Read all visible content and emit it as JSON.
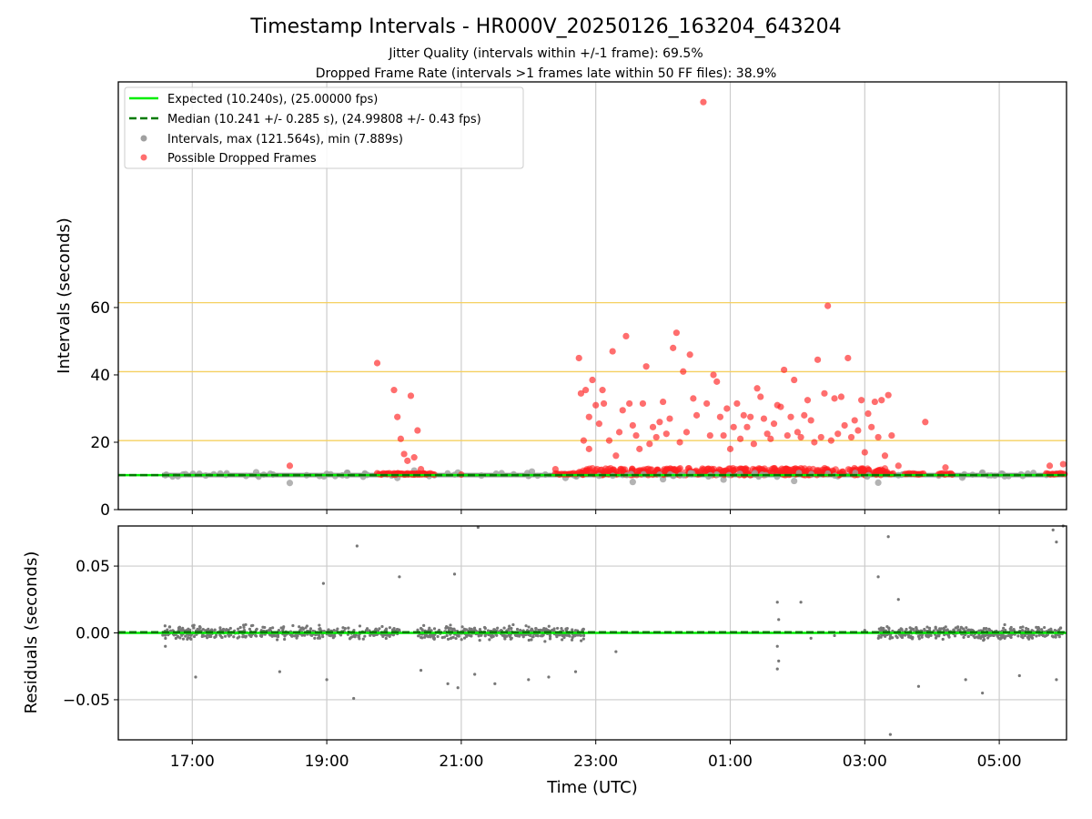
{
  "figure": {
    "title": "Timestamp Intervals - HR000V_20250126_163204_643204",
    "subtitle_1": "Jitter Quality (intervals within +/-1 frame): 69.5%",
    "subtitle_2": "Dropped Frame Rate (intervals >1 frames late within 50 FF files): 38.9%"
  },
  "colors": {
    "expected": "#00ee00",
    "median": "#007a00",
    "intervals": "#a0a0a0",
    "dropped": "#ff2020",
    "residuals": "#777777",
    "threshold": "#f5d060",
    "grid": "#cccccc"
  },
  "chart_data": [
    {
      "type": "scatter",
      "ylabel": "Intervals (seconds)",
      "xlim_hours": [
        15.9,
        30.0
      ],
      "ylim": [
        0,
        127
      ],
      "yticks": [
        0,
        20,
        40,
        60
      ],
      "yticklabels": [
        "0",
        "20",
        "40",
        "60"
      ],
      "xticks_hours": [
        17,
        19,
        21,
        23,
        25,
        27,
        29
      ],
      "grid": true,
      "legend_location": "upper left",
      "legend": [
        "Expected (10.240s), (25.00000 fps)",
        "Median (10.241 +/- 0.285 s), (24.99808 +/- 0.43 fps)",
        "Intervals, max (121.564s), min (7.889s)",
        "Possible Dropped Frames"
      ],
      "threshold_lines": [
        20.48,
        40.96,
        61.44
      ],
      "expected_interval": 10.24,
      "median_interval": 10.241,
      "series": [
        {
          "name": "Intervals, max (121.564s), min (7.889s)",
          "points": [
            [
              16.6,
              10.2
            ],
            [
              16.9,
              10.5
            ],
            [
              17.2,
              10.1
            ],
            [
              17.5,
              10.3
            ],
            [
              17.8,
              10.0
            ],
            [
              17.95,
              11.1
            ],
            [
              18.2,
              10.4
            ],
            [
              18.45,
              7.9
            ],
            [
              18.7,
              10.2
            ],
            [
              19.0,
              10.6
            ],
            [
              19.3,
              10.1
            ],
            [
              19.6,
              10.3
            ],
            [
              20.05,
              9.4
            ],
            [
              20.3,
              11.6
            ],
            [
              20.6,
              10.2
            ],
            [
              20.95,
              11.0
            ],
            [
              21.3,
              10.1
            ],
            [
              21.6,
              10.8
            ],
            [
              22.05,
              11.3
            ],
            [
              22.25,
              10.4
            ],
            [
              22.55,
              9.4
            ],
            [
              22.7,
              10.0
            ],
            [
              23.1,
              11.1
            ],
            [
              23.4,
              10.3
            ],
            [
              23.55,
              8.2
            ],
            [
              24.0,
              9.0
            ],
            [
              24.4,
              10.8
            ],
            [
              24.9,
              8.9
            ],
            [
              25.3,
              10.2
            ],
            [
              25.7,
              10.5
            ],
            [
              25.95,
              8.5
            ],
            [
              26.3,
              11.4
            ],
            [
              26.6,
              9.9
            ],
            [
              26.9,
              10.3
            ],
            [
              27.2,
              8.0
            ],
            [
              27.5,
              10.2
            ],
            [
              27.75,
              10.6
            ],
            [
              28.1,
              10.1
            ],
            [
              28.45,
              9.5
            ],
            [
              28.75,
              11.0
            ],
            [
              29.05,
              10.6
            ],
            [
              29.35,
              10.0
            ],
            [
              29.7,
              10.3
            ]
          ]
        },
        {
          "name": "Possible Dropped Frames",
          "points": [
            [
              18.45,
              13.0
            ],
            [
              19.75,
              43.5
            ],
            [
              19.82,
              10.5
            ],
            [
              20.0,
              35.5
            ],
            [
              20.05,
              27.5
            ],
            [
              20.1,
              21.0
            ],
            [
              20.15,
              16.5
            ],
            [
              20.2,
              14.5
            ],
            [
              20.25,
              33.8
            ],
            [
              20.3,
              15.5
            ],
            [
              20.35,
              23.5
            ],
            [
              20.4,
              12.0
            ],
            [
              20.0,
              10.4
            ],
            [
              20.15,
              10.5
            ],
            [
              20.3,
              10.4
            ],
            [
              20.45,
              10.5
            ],
            [
              20.6,
              10.4
            ],
            [
              22.4,
              12.0
            ],
            [
              22.6,
              10.5
            ],
            [
              22.75,
              45.0
            ],
            [
              22.78,
              34.5
            ],
            [
              22.82,
              20.5
            ],
            [
              22.85,
              35.5
            ],
            [
              22.9,
              18.0
            ],
            [
              22.9,
              27.5
            ],
            [
              22.95,
              38.5
            ],
            [
              23.0,
              31.0
            ],
            [
              23.05,
              25.5
            ],
            [
              23.1,
              35.5
            ],
            [
              23.12,
              31.5
            ],
            [
              23.2,
              20.5
            ],
            [
              23.25,
              47.0
            ],
            [
              23.3,
              16.0
            ],
            [
              23.35,
              23.0
            ],
            [
              23.4,
              29.5
            ],
            [
              23.45,
              51.5
            ],
            [
              23.5,
              31.5
            ],
            [
              23.55,
              25.0
            ],
            [
              23.6,
              22.0
            ],
            [
              23.65,
              18.0
            ],
            [
              23.7,
              31.5
            ],
            [
              23.75,
              42.5
            ],
            [
              23.8,
              19.5
            ],
            [
              23.85,
              24.5
            ],
            [
              23.9,
              21.5
            ],
            [
              23.95,
              26.0
            ],
            [
              24.0,
              32.0
            ],
            [
              24.05,
              22.5
            ],
            [
              24.1,
              27.0
            ],
            [
              24.15,
              48.0
            ],
            [
              24.2,
              52.5
            ],
            [
              24.25,
              20.0
            ],
            [
              24.3,
              41.0
            ],
            [
              24.35,
              23.0
            ],
            [
              24.4,
              46.0
            ],
            [
              24.45,
              33.0
            ],
            [
              24.5,
              28.0
            ],
            [
              24.6,
              121.0
            ],
            [
              24.65,
              31.5
            ],
            [
              24.7,
              22.0
            ],
            [
              24.75,
              40.0
            ],
            [
              24.8,
              38.0
            ],
            [
              24.85,
              27.5
            ],
            [
              24.9,
              22.0
            ],
            [
              24.95,
              30.0
            ],
            [
              25.0,
              18.0
            ],
            [
              25.05,
              24.5
            ],
            [
              25.1,
              31.5
            ],
            [
              25.15,
              21.0
            ],
            [
              25.2,
              28.0
            ],
            [
              25.25,
              24.5
            ],
            [
              25.3,
              27.5
            ],
            [
              25.35,
              19.5
            ],
            [
              25.4,
              36.0
            ],
            [
              25.45,
              33.5
            ],
            [
              25.5,
              27.0
            ],
            [
              25.55,
              22.5
            ],
            [
              25.6,
              21.0
            ],
            [
              25.65,
              25.5
            ],
            [
              25.7,
              31.0
            ],
            [
              25.75,
              30.5
            ],
            [
              25.8,
              41.5
            ],
            [
              25.85,
              22.0
            ],
            [
              25.9,
              27.5
            ],
            [
              25.95,
              38.5
            ],
            [
              26.0,
              23.0
            ],
            [
              26.05,
              21.5
            ],
            [
              26.1,
              28.0
            ],
            [
              26.15,
              32.5
            ],
            [
              26.2,
              26.5
            ],
            [
              26.25,
              20.0
            ],
            [
              26.3,
              44.5
            ],
            [
              26.35,
              21.5
            ],
            [
              26.4,
              34.5
            ],
            [
              26.45,
              60.5
            ],
            [
              26.5,
              20.5
            ],
            [
              26.55,
              33.0
            ],
            [
              26.6,
              22.5
            ],
            [
              26.65,
              33.5
            ],
            [
              26.7,
              25.0
            ],
            [
              26.75,
              45.0
            ],
            [
              26.8,
              21.5
            ],
            [
              26.85,
              26.5
            ],
            [
              26.9,
              23.5
            ],
            [
              26.95,
              32.5
            ],
            [
              27.0,
              17.0
            ],
            [
              27.05,
              28.5
            ],
            [
              27.1,
              24.5
            ],
            [
              27.15,
              32.0
            ],
            [
              27.2,
              21.5
            ],
            [
              27.25,
              32.5
            ],
            [
              27.3,
              16.0
            ],
            [
              27.35,
              34.0
            ],
            [
              27.4,
              22.0
            ],
            [
              27.5,
              13.0
            ],
            [
              27.9,
              26.0
            ],
            [
              28.2,
              12.5
            ],
            [
              29.75,
              13.0
            ],
            [
              29.95,
              13.5
            ],
            [
              21.0,
              10.4
            ],
            [
              19.9,
              10.5
            ],
            [
              27.8,
              10.5
            ],
            [
              28.3,
              10.4
            ],
            [
              29.8,
              10.5
            ]
          ]
        }
      ],
      "dense_band": {
        "x_range_hours": [
          22.75,
          27.35
        ],
        "y_range": [
          10.2,
          12.3
        ],
        "count": 420
      },
      "sparse_band": {
        "x_range_hours": [
          16.5,
          29.9
        ],
        "y_range": [
          9.7,
          11.0
        ],
        "count": 90
      }
    },
    {
      "type": "scatter",
      "ylabel": "Residuals (seconds)",
      "xlabel": "Time (UTC)",
      "xlim_hours": [
        15.9,
        30.0
      ],
      "ylim": [
        -0.08,
        0.08
      ],
      "yticks": [
        -0.05,
        0.0,
        0.05
      ],
      "yticklabels": [
        "−0.05",
        "0.00",
        "0.05"
      ],
      "xticks_hours": [
        17,
        19,
        21,
        23,
        25,
        27,
        29
      ],
      "xticklabels": [
        "17:00",
        "19:00",
        "21:00",
        "23:00",
        "01:00",
        "03:00",
        "05:00"
      ],
      "grid": true,
      "residual_segments": [
        {
          "x_range_hours": [
            16.55,
            20.1
          ],
          "count": 420
        },
        {
          "x_range_hours": [
            20.35,
            22.85
          ],
          "count": 360
        },
        {
          "x_range_hours": [
            27.2,
            29.95
          ],
          "count": 420
        }
      ],
      "outliers": [
        [
          16.6,
          -0.01
        ],
        [
          17.05,
          -0.033
        ],
        [
          18.3,
          -0.029
        ],
        [
          18.95,
          0.037
        ],
        [
          19.0,
          -0.035
        ],
        [
          19.45,
          0.065
        ],
        [
          19.4,
          -0.049
        ],
        [
          20.08,
          0.042
        ],
        [
          20.4,
          -0.028
        ],
        [
          20.8,
          -0.038
        ],
        [
          20.9,
          0.044
        ],
        [
          20.95,
          -0.041
        ],
        [
          21.25,
          0.079
        ],
        [
          21.2,
          -0.031
        ],
        [
          21.5,
          -0.038
        ],
        [
          22.0,
          -0.035
        ],
        [
          22.3,
          -0.033
        ],
        [
          22.7,
          -0.029
        ],
        [
          23.3,
          -0.014
        ],
        [
          25.7,
          0.023
        ],
        [
          25.72,
          0.01
        ],
        [
          25.7,
          -0.01
        ],
        [
          25.72,
          -0.021
        ],
        [
          25.7,
          -0.027
        ],
        [
          26.05,
          0.023
        ],
        [
          26.2,
          -0.004
        ],
        [
          26.55,
          -0.002
        ],
        [
          27.0,
          0.002
        ],
        [
          27.2,
          0.042
        ],
        [
          27.35,
          0.072
        ],
        [
          27.38,
          -0.076
        ],
        [
          27.5,
          0.025
        ],
        [
          27.8,
          -0.04
        ],
        [
          28.5,
          -0.035
        ],
        [
          28.75,
          -0.045
        ],
        [
          29.3,
          -0.032
        ],
        [
          29.8,
          0.077
        ],
        [
          29.85,
          0.068
        ],
        [
          29.95,
          0.08
        ],
        [
          29.85,
          -0.035
        ]
      ]
    }
  ]
}
